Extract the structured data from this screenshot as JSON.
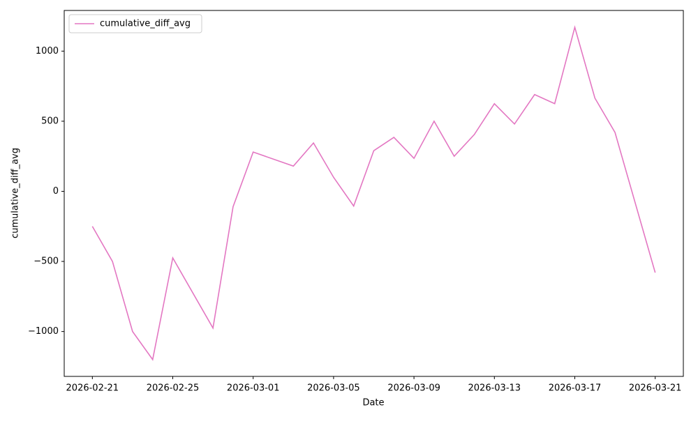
{
  "chart_data": {
    "type": "line",
    "x_label": "Date",
    "y_label": "cumulative_diff_avg",
    "x": [
      "2026-02-21",
      "2026-02-22",
      "2026-02-23",
      "2026-02-24",
      "2026-02-25",
      "2026-02-27",
      "2026-02-28",
      "2026-03-01",
      "2026-03-03",
      "2026-03-04",
      "2026-03-05",
      "2026-03-06",
      "2026-03-07",
      "2026-03-08",
      "2026-03-09",
      "2026-03-10",
      "2026-03-11",
      "2026-03-12",
      "2026-03-13",
      "2026-03-14",
      "2026-03-15",
      "2026-03-16",
      "2026-03-17",
      "2026-03-18",
      "2026-03-19",
      "2026-03-21"
    ],
    "series": [
      {
        "name": "cumulative_diff_avg",
        "color": "#e377c2",
        "values": [
          -250,
          -500,
          -1000,
          -1200,
          -475,
          -975,
          -110,
          280,
          180,
          345,
          100,
          -105,
          290,
          385,
          235,
          500,
          250,
          405,
          625,
          480,
          690,
          625,
          1170,
          665,
          420,
          -580
        ]
      }
    ],
    "xlim": [
      "2026-02-19T14:24",
      "2026-03-22T09:36"
    ],
    "xticks": [
      "2026-02-21",
      "2026-02-25",
      "2026-03-01",
      "2026-03-05",
      "2026-03-09",
      "2026-03-13",
      "2026-03-17",
      "2026-03-21"
    ],
    "ylim": [
      -1320,
      1290
    ],
    "yticks": [
      {
        "value": -1000,
        "label": "−1000"
      },
      {
        "value": -500,
        "label": "−500"
      },
      0,
      500,
      1000
    ],
    "grid": false,
    "legend": "upper left"
  }
}
